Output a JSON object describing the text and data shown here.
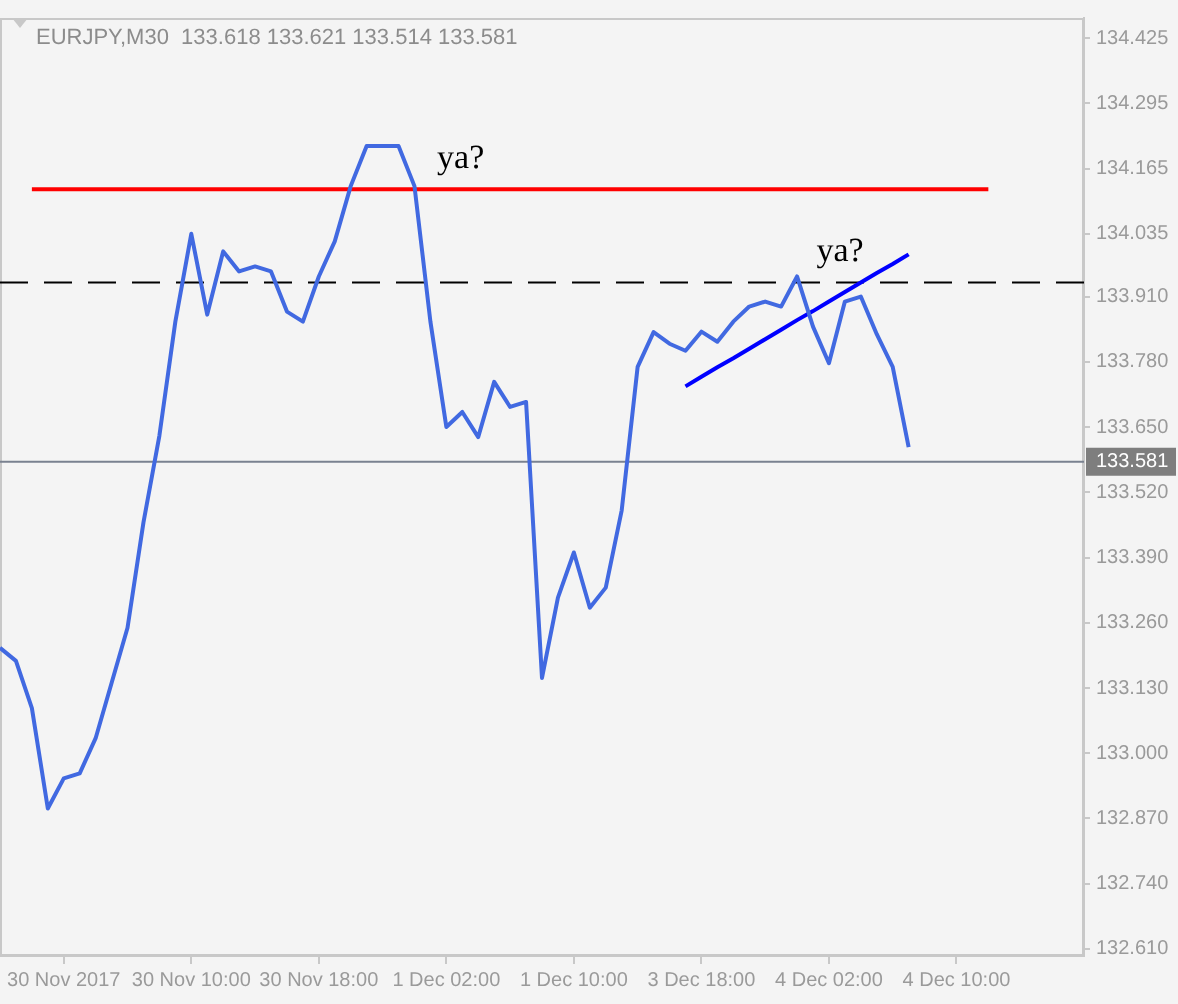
{
  "chart_data": {
    "type": "line",
    "title": "EURJPY,M30  133.618 133.621 133.514 133.581",
    "categories": [
      null,
      null,
      null,
      null,
      "30 Nov 2017",
      null,
      null,
      null,
      null,
      null,
      null,
      null,
      "30 Nov 10:00",
      null,
      null,
      null,
      null,
      null,
      null,
      null,
      "30 Nov 18:00",
      null,
      null,
      null,
      null,
      null,
      null,
      null,
      "1 Dec 02:00",
      null,
      null,
      null,
      null,
      null,
      null,
      null,
      "1 Dec 10:00",
      null,
      null,
      null,
      null,
      null,
      null,
      null,
      "3 Dec 18:00",
      null,
      null,
      null,
      null,
      null,
      null,
      null,
      "4 Dec 02:00",
      null,
      null,
      null,
      null,
      null,
      null,
      null,
      "4 Dec 10:00",
      null,
      null,
      null,
      null,
      null,
      null,
      null,
      null
    ],
    "ylim": [
      132.596,
      134.465
    ],
    "yticks": [
      {
        "value": 132.61,
        "label": "132.610"
      },
      {
        "value": 132.74,
        "label": "132.740"
      },
      {
        "value": 132.87,
        "label": "132.870"
      },
      {
        "value": 133.0,
        "label": "133.000"
      },
      {
        "value": 133.13,
        "label": "133.130"
      },
      {
        "value": 133.26,
        "label": "133.260"
      },
      {
        "value": 133.39,
        "label": "133.390"
      },
      {
        "value": 133.52,
        "label": "133.520"
      },
      {
        "value": 133.65,
        "label": "133.650"
      },
      {
        "value": 133.78,
        "label": "133.780"
      },
      {
        "value": 133.91,
        "label": "133.910"
      },
      134.035,
      134.165,
      134.295,
      134.425
    ],
    "grid": false,
    "legend": false,
    "marker": "none",
    "series": [
      {
        "color": "#4169e1",
        "values": [
          133.21,
          133.184,
          133.09,
          132.89,
          132.95,
          132.96,
          133.03,
          133.14,
          133.25,
          133.46,
          133.633,
          133.86,
          134.035,
          133.874,
          134.0,
          133.96,
          133.97,
          133.96,
          133.88,
          133.86,
          133.95,
          134.02,
          134.13,
          134.21,
          134.21,
          134.21,
          134.13,
          133.86,
          133.65,
          133.68,
          133.63,
          133.74,
          133.69,
          133.7,
          133.15,
          133.31,
          133.4,
          133.29,
          133.33,
          133.484,
          133.77,
          133.839,
          133.816,
          133.802,
          133.84,
          133.82,
          133.86,
          133.89,
          133.9,
          133.89,
          133.95,
          133.85,
          133.777,
          133.9,
          133.91,
          133.835,
          133.77,
          133.61,
          null,
          null,
          null,
          null,
          null,
          null,
          null,
          null,
          null,
          null,
          null
        ]
      },
      {
        "color": "#0000ff",
        "values": [
          null,
          null,
          null,
          null,
          null,
          null,
          null,
          null,
          null,
          null,
          null,
          null,
          null,
          null,
          null,
          null,
          null,
          null,
          null,
          null,
          null,
          null,
          null,
          null,
          null,
          null,
          null,
          null,
          null,
          null,
          null,
          null,
          null,
          null,
          null,
          null,
          null,
          null,
          null,
          null,
          null,
          null,
          null,
          133.731,
          133.75,
          133.769,
          133.787,
          133.806,
          133.825,
          133.844,
          133.863,
          133.881,
          133.9,
          133.919,
          133.938,
          133.957,
          133.975,
          133.994,
          null,
          null,
          null,
          null,
          null,
          null,
          null,
          null,
          null,
          null,
          null
        ]
      },
      {
        "color": "#ff0000",
        "values": [
          null,
          null,
          134.124,
          134.124,
          134.124,
          134.124,
          134.124,
          134.124,
          134.124,
          134.124,
          134.124,
          134.124,
          134.124,
          134.124,
          134.124,
          134.124,
          134.124,
          134.124,
          134.124,
          134.124,
          134.124,
          134.124,
          134.124,
          134.124,
          134.124,
          134.124,
          134.124,
          134.124,
          134.124,
          134.124,
          134.124,
          134.124,
          134.124,
          134.124,
          134.124,
          134.124,
          134.124,
          134.124,
          134.124,
          134.124,
          134.124,
          134.124,
          134.124,
          134.124,
          134.124,
          134.124,
          134.124,
          134.124,
          134.124,
          134.124,
          134.124,
          134.124,
          134.124,
          134.124,
          134.124,
          134.124,
          134.124,
          134.124,
          134.124,
          134.124,
          134.124,
          134.124,
          134.124,
          null,
          null,
          null,
          null,
          null,
          null
        ]
      }
    ],
    "ref_lines": [
      {
        "axis": "y",
        "value": 133.938,
        "color": "#000000",
        "line_style": "dashed"
      },
      {
        "axis": "y",
        "value": 133.581,
        "label": "133.581",
        "color": "#7a8290",
        "line_style": "solid"
      }
    ],
    "annotations": [
      "ya?",
      "ya?"
    ]
  }
}
